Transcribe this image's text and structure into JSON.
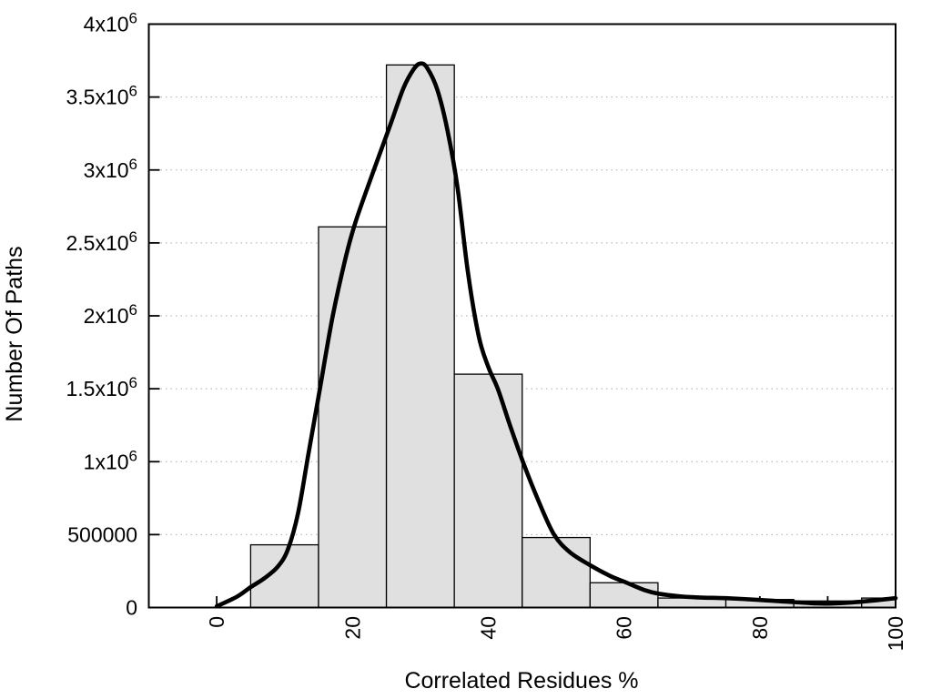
{
  "chart_data": {
    "type": "bar",
    "subtype": "histogram_with_smooth_curve",
    "title": "",
    "xlabel": "Correlated Residues %",
    "ylabel": "Number Of Paths",
    "xlim": [
      -10,
      100
    ],
    "ylim": [
      0,
      4000000
    ],
    "grid": "horizontal_dotted",
    "legend": "none",
    "x_major_ticks": [
      {
        "value": 0,
        "label": "0"
      },
      {
        "value": 20,
        "label": "20"
      },
      {
        "value": 40,
        "label": "40"
      },
      {
        "value": 60,
        "label": "60"
      },
      {
        "value": 80,
        "label": "80"
      },
      {
        "value": 100,
        "label": "100"
      }
    ],
    "x_minor_tick_step": 10,
    "x_tick_label_rotation": -90,
    "y_ticks": [
      {
        "value": 0,
        "label": "0",
        "exponent": ""
      },
      {
        "value": 500000,
        "label": "500000",
        "exponent": ""
      },
      {
        "value": 1000000,
        "label": "1x10",
        "exponent": "6"
      },
      {
        "value": 1500000,
        "label": "1.5x10",
        "exponent": "6"
      },
      {
        "value": 2000000,
        "label": "2x10",
        "exponent": "6"
      },
      {
        "value": 2500000,
        "label": "2.5x10",
        "exponent": "6"
      },
      {
        "value": 3000000,
        "label": "3x10",
        "exponent": "6"
      },
      {
        "value": 3500000,
        "label": "3.5x10",
        "exponent": "6"
      },
      {
        "value": 4000000,
        "label": "4x10",
        "exponent": "6"
      }
    ],
    "histogram": {
      "bin_edges": [
        5,
        15,
        25,
        35,
        45,
        55,
        65,
        75,
        85,
        95,
        100
      ],
      "counts": [
        430000,
        2610000,
        3720000,
        1600000,
        480000,
        170000,
        65000,
        55000,
        45000,
        65000
      ]
    },
    "curve_points": [
      [
        0,
        8000
      ],
      [
        3,
        75000
      ],
      [
        5,
        140000
      ],
      [
        7,
        200000
      ],
      [
        9,
        280000
      ],
      [
        10.5,
        400000
      ],
      [
        12,
        650000
      ],
      [
        13.5,
        1050000
      ],
      [
        15.2,
        1500000
      ],
      [
        17.1,
        2000000
      ],
      [
        19,
        2400000
      ],
      [
        20.5,
        2650000
      ],
      [
        23,
        2980000
      ],
      [
        25.5,
        3300000
      ],
      [
        27.5,
        3560000
      ],
      [
        29,
        3690000
      ],
      [
        30,
        3730000
      ],
      [
        31,
        3700000
      ],
      [
        32.5,
        3550000
      ],
      [
        34,
        3270000
      ],
      [
        35.5,
        2870000
      ],
      [
        37,
        2300000
      ],
      [
        38.6,
        1860000
      ],
      [
        40,
        1650000
      ],
      [
        41.4,
        1500000
      ],
      [
        43.2,
        1250000
      ],
      [
        45.1,
        1000000
      ],
      [
        47.5,
        720000
      ],
      [
        49.7,
        500000
      ],
      [
        52,
        380000
      ],
      [
        55,
        290000
      ],
      [
        58,
        215000
      ],
      [
        60.2,
        174000
      ],
      [
        63,
        120000
      ],
      [
        65.1,
        95000
      ],
      [
        68,
        78000
      ],
      [
        71,
        69000
      ],
      [
        75,
        64000
      ],
      [
        80,
        52000
      ],
      [
        84,
        40000
      ],
      [
        88,
        29000
      ],
      [
        90,
        27000
      ],
      [
        93,
        33000
      ],
      [
        96,
        45000
      ],
      [
        100,
        64000
      ]
    ],
    "styles": {
      "background": "#ffffff",
      "bar_fill": "#e0e0e0",
      "bar_stroke": "#000000",
      "curve_color": "#000000",
      "axis_color": "#000000",
      "grid_color": "#bbbbbb",
      "text_color": "#000000"
    }
  }
}
